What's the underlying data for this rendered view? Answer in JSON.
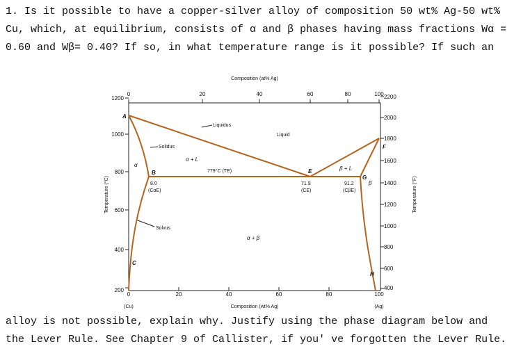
{
  "question": {
    "lines": [
      "1. Is it possible to have a copper-silver alloy of composition 50 wt% Ag-50 wt%",
      "Cu, which, at equilibrium, consists of α and β phases having mass fractions Wα =",
      "0.60 and Wβ= 0.40? If so, in what temperature range is it possible? If such an",
      "alloy is not possible, explain why. Justify using the phase diagram below and",
      "the Lever Rule. See Chapter 9 of Callister, if you' ve forgotten the Lever Rule."
    ]
  },
  "diagram": {
    "top_axis_label": "Composition (at% Ag)",
    "bottom_axis_label": "Composition (wt% Ag)",
    "left_axis_label": "Temperature (°C)",
    "right_axis_label": "Temperature (°F)",
    "top_ticks": [
      "0",
      "20",
      "40",
      "60",
      "80",
      "100"
    ],
    "bottom_ticks": [
      "0",
      "20",
      "40",
      "60",
      "80",
      "100"
    ],
    "left_ticks": [
      "1200",
      "1000",
      "800",
      "600",
      "400",
      "200"
    ],
    "right_ticks": [
      "2200",
      "2000",
      "1800",
      "1600",
      "1400",
      "1200",
      "1000",
      "800",
      "600",
      "400"
    ],
    "bottom_left_end": "(Cu)",
    "bottom_right_end": "(Ag)",
    "labels": {
      "liquidus": "Liquidus",
      "liquid": "Liquid",
      "solidus": "Solidus",
      "solvus": "Solvus",
      "alpha": "α",
      "alpha_plus_l": "α + L",
      "beta_plus_l": "β + L",
      "beta": "β",
      "alpha_plus_beta": "α + β",
      "eutectic_temp": "779°C (TE)",
      "point_a": "A",
      "point_b": "B",
      "point_c": "C",
      "point_e": "E",
      "point_f": "F",
      "point_g": "G",
      "point_h": "H",
      "comp_b_value": "8.0",
      "comp_b_label": "(CαE)",
      "comp_e_value": "71.9",
      "comp_e_label": "(CE)",
      "comp_g_value": "91.2",
      "comp_g_label": "(CβE)"
    }
  }
}
